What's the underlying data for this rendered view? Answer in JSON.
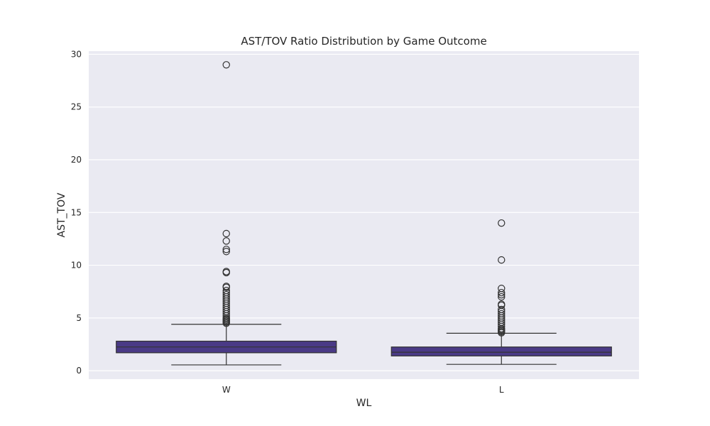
{
  "chart_data": {
    "type": "box",
    "title": "AST/TOV Ratio Distribution by Game Outcome",
    "xlabel": "WL",
    "ylabel": "AST_TOV",
    "categories": [
      "W",
      "L"
    ],
    "ylim": [
      -0.8,
      30.3
    ],
    "yticks": [
      0,
      5,
      10,
      15,
      20,
      25,
      30
    ],
    "ytick_labels": [
      "0",
      "5",
      "10",
      "15",
      "20",
      "25",
      "30"
    ],
    "grid": true,
    "box_color": "#4a3a86",
    "plot_background": "#eaeaf2",
    "boxes": [
      {
        "category": "W",
        "whisker_low": 0.55,
        "q1": 1.7,
        "median": 2.25,
        "q3": 2.8,
        "whisker_high": 4.4,
        "outliers": [
          29.0,
          13.0,
          12.3,
          11.5,
          11.3,
          9.4,
          9.3,
          8.0,
          7.9,
          7.6,
          7.4,
          7.2,
          7.0,
          6.8,
          6.6,
          6.4,
          6.2,
          6.0,
          5.8,
          5.6,
          5.4,
          5.2,
          5.0,
          4.9,
          4.8,
          4.7,
          4.6,
          4.5
        ]
      },
      {
        "category": "L",
        "whisker_low": 0.6,
        "q1": 1.4,
        "median": 1.75,
        "q3": 2.25,
        "whisker_high": 3.55,
        "outliers": [
          14.0,
          10.5,
          7.8,
          7.4,
          7.2,
          7.0,
          6.3,
          6.2,
          5.8,
          5.6,
          5.4,
          5.2,
          5.0,
          4.8,
          4.6,
          4.4,
          4.2,
          4.0,
          3.9,
          3.8,
          3.7,
          3.6
        ]
      }
    ]
  }
}
